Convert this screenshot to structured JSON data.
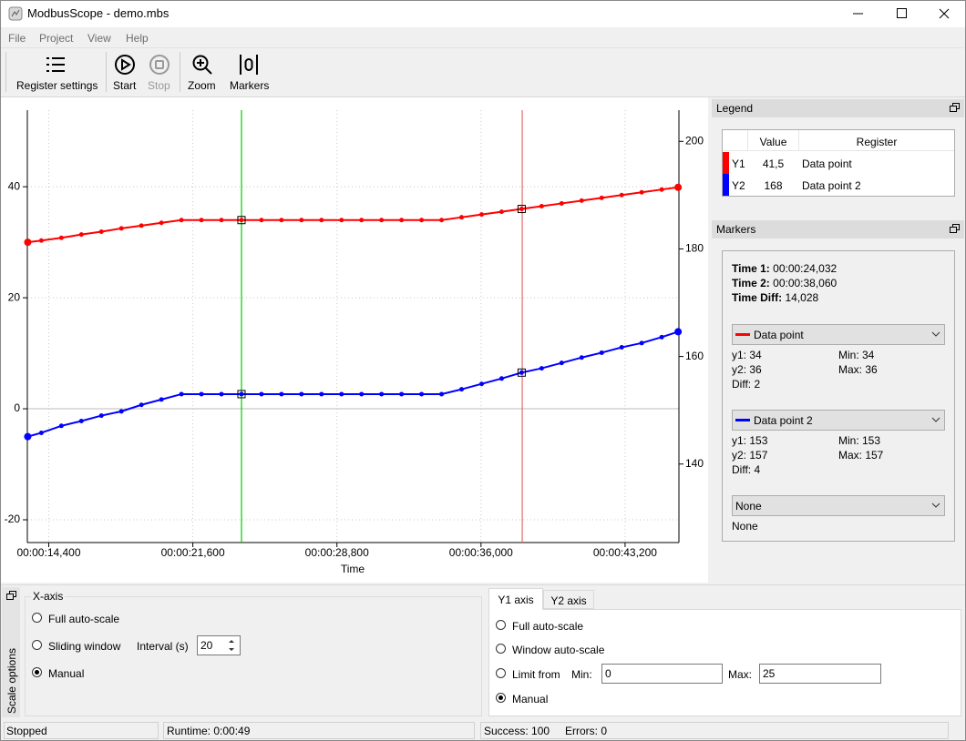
{
  "window": {
    "title": "ModbusScope - demo.mbs"
  },
  "menu": [
    "File",
    "Project",
    "View",
    "Help"
  ],
  "toolbar": [
    "Register settings",
    "Start",
    "Stop",
    "Zoom",
    "Markers"
  ],
  "chart_data": {
    "type": "line",
    "x_label": "Time",
    "x": [
      13.35,
      14.03,
      15.03,
      16.03,
      17.03,
      18.03,
      19.03,
      20.03,
      21.03,
      22.03,
      23.03,
      24.03,
      25.03,
      26.03,
      27.03,
      28.03,
      29.03,
      30.03,
      31.03,
      32.03,
      33.03,
      34.03,
      35.03,
      36.03,
      37.03,
      38.03,
      39.03,
      40.03,
      41.03,
      42.03,
      43.03,
      44.03,
      45.03,
      45.85
    ],
    "series": [
      {
        "name": "Data point",
        "color": "#ff0000",
        "axis": "y",
        "values": [
          30.0,
          30.3,
          30.8,
          31.4,
          31.9,
          32.5,
          33.0,
          33.5,
          34,
          34,
          34,
          34,
          34,
          34,
          34,
          34,
          34,
          34,
          34,
          34,
          34,
          34,
          34.5,
          35,
          35.5,
          36,
          36.5,
          37,
          37.5,
          38,
          38.5,
          39,
          39.5,
          39.9
        ]
      },
      {
        "name": "Data point 2",
        "color": "#0000ff",
        "axis": "y2",
        "values": [
          145.1,
          145.8,
          147.1,
          148.0,
          149.0,
          149.8,
          151.0,
          152.0,
          153,
          153,
          153,
          153,
          153,
          153,
          153,
          153,
          153,
          153,
          153,
          153,
          153,
          153,
          153.9,
          154.9,
          155.9,
          157,
          157.8,
          158.8,
          159.8,
          160.7,
          161.7,
          162.5,
          163.6,
          164.6
        ]
      }
    ],
    "xlim": [
      13.33,
      45.89
    ],
    "xticks": [
      {
        "value": 14.4,
        "label": "00:00:14,400"
      },
      {
        "value": 21.6,
        "label": "00:00:21,600"
      },
      {
        "value": 28.8,
        "label": "00:00:28,800"
      },
      {
        "value": 36.0,
        "label": "00:00:36,000"
      },
      {
        "value": 43.2,
        "label": "00:00:43,200"
      }
    ],
    "ylim": [
      -24.1,
      53.8
    ],
    "yticks": [
      -20,
      0,
      20,
      40
    ],
    "y2lim": [
      125.4,
      205.8
    ],
    "y2ticks": [
      140,
      160,
      180,
      200
    ],
    "grid": true,
    "markers": [
      {
        "value": 24.032,
        "color": "#00cc00"
      },
      {
        "value": 38.06,
        "color": "#e86a6a"
      }
    ]
  },
  "legend_panel": {
    "title": "Legend",
    "headers": [
      "Value",
      "Register"
    ],
    "rows": [
      [
        "Y1",
        "41,5",
        "Data point"
      ],
      [
        "Y2",
        "168",
        "Data point 2"
      ]
    ]
  },
  "markers_panel": {
    "title": "Markers",
    "time1_label": "Time 1:",
    "time1": "00:00:24,032",
    "time2_label": "Time 2:",
    "time2": "00:00:38,060",
    "diff_label": "Time Diff:",
    "diff": "14,028",
    "groups": [
      {
        "name": "Data point",
        "y1": "y1: 34",
        "min": "Min: 34",
        "y2": "y2: 36",
        "max": "Max: 36",
        "diff": "Diff: 2"
      },
      {
        "name": "Data point 2",
        "y1": "y1: 153",
        "min": "Min: 153",
        "y2": "y2: 157",
        "max": "Max: 157",
        "diff": "Diff: 4"
      },
      {
        "name": "None",
        "value": "None"
      }
    ]
  },
  "scale_options": {
    "title": "Scale options",
    "x_axis": {
      "title": "X-axis",
      "options": [
        "Full auto-scale",
        "Sliding window",
        "Manual"
      ],
      "interval_label": "Interval (s)",
      "interval": "20"
    },
    "tabs": [
      "Y1 axis",
      "Y2 axis"
    ],
    "y_axis": {
      "options": [
        "Full auto-scale",
        "Window auto-scale",
        "Limit from",
        "Manual"
      ],
      "min_label": "Min:",
      "min": "0",
      "max_label": "Max:",
      "max": "25"
    }
  },
  "status": [
    "Stopped",
    "Runtime: 0:00:49",
    "Success: 100",
    "Errors: 0"
  ]
}
